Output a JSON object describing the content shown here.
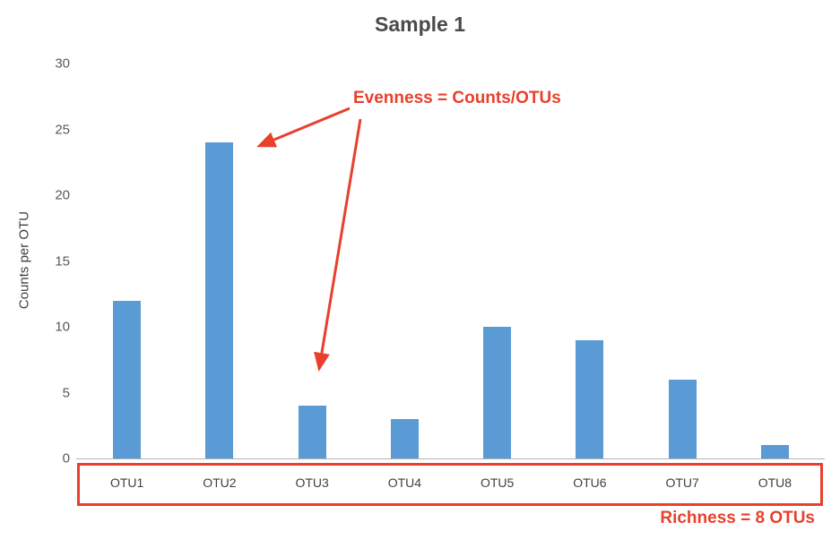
{
  "chart_data": {
    "type": "bar",
    "title": "Sample 1",
    "xlabel": "",
    "ylabel": "Counts per OTU",
    "categories": [
      "OTU1",
      "OTU2",
      "OTU3",
      "OTU4",
      "OTU5",
      "OTU6",
      "OTU7",
      "OTU8"
    ],
    "values": [
      12,
      24,
      4,
      3,
      10,
      9,
      6,
      1
    ],
    "ylim": [
      0,
      30
    ],
    "yticks": [
      0,
      5,
      10,
      15,
      20,
      25,
      30
    ],
    "bar_color": "#5b9bd5",
    "grid": false,
    "legend": "none"
  },
  "annotations": {
    "evenness": "Evenness = Counts/OTUs",
    "richness": "Richness = 8 OTUs",
    "accent_color": "#e8402c"
  }
}
